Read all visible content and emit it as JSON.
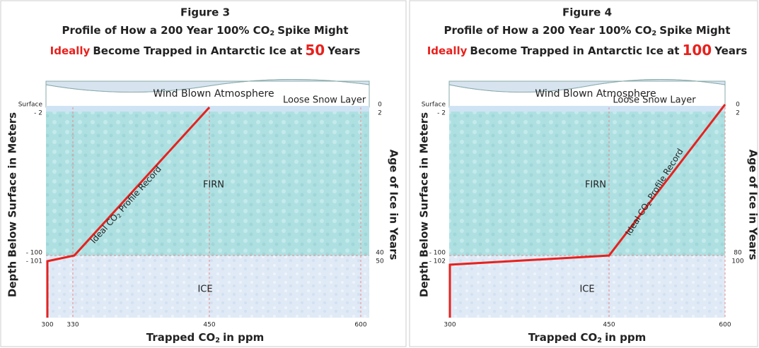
{
  "figures": [
    {
      "title": "Figure 3",
      "line1": [
        "Profile of How a 200 Year 100% CO",
        "2",
        "Spike Might"
      ],
      "line2": [
        "Ideally",
        "Become Trapped in Antarctic Ice at",
        "50",
        "Years"
      ],
      "atmosphere": "Wind Blown Atmosphere",
      "snow": "Loose Snow Layer",
      "firn": "FIRN",
      "ice": "ICE",
      "profile": [
        "Ideal CO",
        "2",
        "Profile Record"
      ],
      "y_label": "Depth Below Surface in Meters",
      "y2_label": "Age of Ice in Years",
      "x_label": [
        "Trapped CO",
        "2",
        "in ppm"
      ],
      "x_ticks": [
        "300",
        "330",
        "450",
        "600"
      ],
      "y_ticks": [
        "Surface",
        "- 2",
        "- 100",
        "- 101"
      ],
      "y2_ticks": [
        "0",
        "2",
        "40",
        "50"
      ]
    },
    {
      "title": "Figure 4",
      "line1": [
        "Profile of How a 200 Year 100% CO",
        "2",
        "Spike Might"
      ],
      "line2": [
        "Ideally",
        "Become Trapped in Antarctic Ice at",
        "100",
        "Years"
      ],
      "atmosphere": "Wind Blown Atmosphere",
      "snow": "Loose Snow Layer",
      "firn": "FIRN",
      "ice": "ICE",
      "profile": [
        "Ideal CO",
        "2",
        "Profile Record"
      ],
      "y_label": "Depth Below Surface in Meters",
      "y2_label": "Age of Ice in Years",
      "x_label": [
        "Trapped CO",
        "2",
        "in ppm"
      ],
      "x_ticks": [
        "300",
        "450",
        "600"
      ],
      "y_ticks": [
        "Surface",
        "- 2",
        "- 100",
        "- 102"
      ],
      "y2_ticks": [
        "0",
        "2",
        "80",
        "100"
      ]
    }
  ]
}
